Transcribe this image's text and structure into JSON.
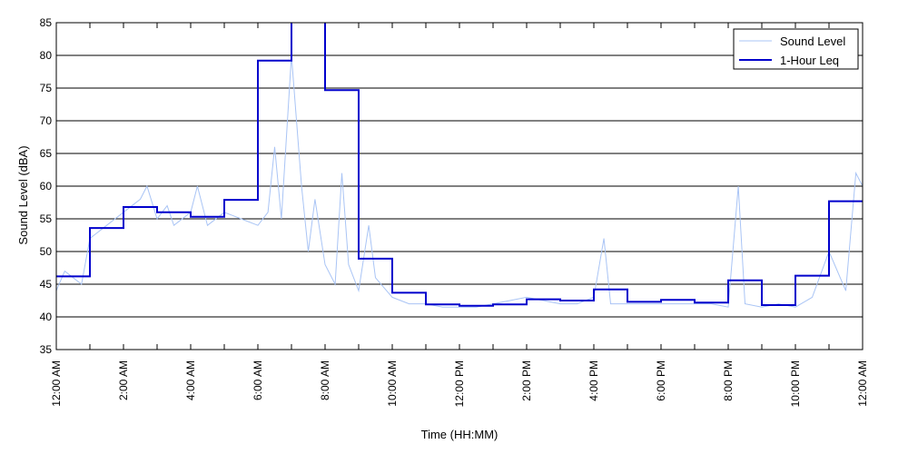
{
  "chart_data": {
    "type": "line",
    "xlabel": "Time (HH:MM)",
    "ylabel": "Sound Level (dBA)",
    "ylim": [
      35,
      85
    ],
    "xlim": [
      0,
      24
    ],
    "x_unit": "hours after 12:00 AM",
    "yticks": [
      "35",
      "40",
      "45",
      "50",
      "55",
      "60",
      "65",
      "70",
      "75",
      "80",
      "85"
    ],
    "xtick_labels": [
      "12:00 AM",
      "2:00 AM",
      "4:00 AM",
      "6:00 AM",
      "8:00 AM",
      "10:00 AM",
      "12:00 PM",
      "2:00 PM",
      "4:00 PM",
      "6:00 PM",
      "8:00 PM",
      "10:00 PM",
      "12:00 AM"
    ],
    "grid": "horizontal",
    "legend_position": "top-right",
    "series": [
      {
        "name": "Sound Level",
        "color": "#a9c4f5",
        "style": "thin line",
        "x": [
          0,
          0.25,
          0.5,
          0.75,
          1,
          1.5,
          2,
          2.5,
          2.7,
          3,
          3.3,
          3.5,
          4,
          4.2,
          4.5,
          5,
          5.5,
          6,
          6.3,
          6.5,
          6.7,
          7,
          7.3,
          7.5,
          7.7,
          8,
          8.3,
          8.5,
          8.7,
          9,
          9.3,
          9.5,
          10,
          10.5,
          11,
          11.5,
          12,
          12.5,
          13,
          13.5,
          14,
          14.5,
          15,
          15.5,
          16,
          16.3,
          16.5,
          17,
          17.5,
          18,
          18.5,
          19,
          19.5,
          20,
          20.3,
          20.5,
          21,
          21.5,
          22,
          22.5,
          23,
          23.5,
          23.8,
          24
        ],
        "y": [
          44,
          47,
          46,
          45,
          52,
          54,
          56,
          58,
          60,
          55,
          57,
          54,
          56,
          60,
          54,
          56,
          55,
          54,
          56,
          66,
          55,
          80,
          60,
          50,
          58,
          48,
          45,
          62,
          48,
          44,
          54,
          46,
          43,
          42,
          42,
          41.5,
          41.5,
          41.5,
          42,
          42.5,
          43,
          42.5,
          42,
          42,
          43,
          52,
          42,
          42,
          42,
          42,
          42,
          42,
          42,
          41.5,
          60,
          42,
          41.5,
          42,
          41.5,
          43,
          50,
          44,
          62,
          60
        ]
      },
      {
        "name": "1-Hour Leq",
        "color": "#0000cc",
        "style": "step",
        "x": [
          0,
          1,
          2,
          3,
          4,
          5,
          6,
          7,
          8,
          9,
          10,
          11,
          12,
          13,
          14,
          15,
          16,
          17,
          18,
          19,
          20,
          21,
          22,
          23
        ],
        "y": [
          46.2,
          53.6,
          56.8,
          56.0,
          55.3,
          57.9,
          79.2,
          85.2,
          74.7,
          48.9,
          43.7,
          41.9,
          41.7,
          41.9,
          42.7,
          42.5,
          44.2,
          42.3,
          42.6,
          42.2,
          45.6,
          41.8,
          46.3,
          57.7
        ]
      }
    ]
  }
}
